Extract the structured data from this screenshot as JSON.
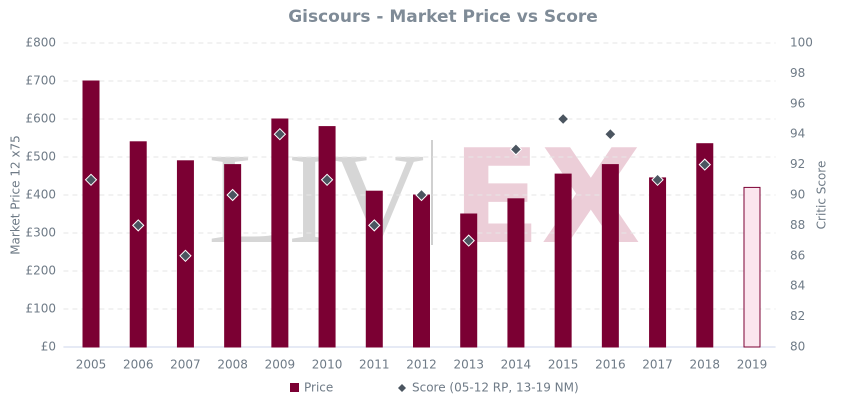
{
  "chart_data": {
    "type": "bar",
    "title": "Giscours - Market Price vs Score",
    "watermark": [
      "LIV",
      "EX"
    ],
    "categories": [
      "2005",
      "2006",
      "2007",
      "2008",
      "2009",
      "2010",
      "2011",
      "2012",
      "2013",
      "2014",
      "2015",
      "2016",
      "2017",
      "2018",
      "2019"
    ],
    "series": [
      {
        "name": "Price",
        "type": "bar",
        "color": "#7b0033",
        "colors": [
          "#7b0033",
          "#7b0033",
          "#7b0033",
          "#7b0033",
          "#7b0033",
          "#7b0033",
          "#7b0033",
          "#7b0033",
          "#7b0033",
          "#7b0033",
          "#7b0033",
          "#7b0033",
          "#7b0033",
          "#7b0033",
          "#fbe6ee"
        ],
        "values": [
          700,
          540,
          490,
          480,
          600,
          580,
          410,
          400,
          350,
          390,
          455,
          480,
          445,
          535,
          420
        ]
      },
      {
        "name": "Score (05-12 RP, 13-19 NM)",
        "type": "scatter",
        "axis": "y2",
        "color": "#4b5560",
        "values": [
          91,
          88,
          86,
          90,
          94,
          91,
          88,
          90,
          87,
          93,
          95,
          94,
          91,
          92,
          null
        ]
      }
    ],
    "ylabel": "Market Price 12 x75",
    "y2label": "Critic Score",
    "ylim": [
      0,
      800
    ],
    "yticks": [
      {
        "value": 0,
        "label": "£0"
      },
      {
        "value": 100,
        "label": "£100"
      },
      {
        "value": 200,
        "label": "£200"
      },
      {
        "value": 300,
        "label": "£300"
      },
      {
        "value": 400,
        "label": "£400"
      },
      {
        "value": 500,
        "label": "£500"
      },
      {
        "value": 600,
        "label": "£600"
      },
      {
        "value": 700,
        "label": "£700"
      },
      {
        "value": 800,
        "label": "£800"
      }
    ],
    "y2lim": [
      80,
      100
    ],
    "y2ticks": [
      80,
      82,
      84,
      86,
      88,
      90,
      92,
      94,
      96,
      98,
      100
    ],
    "grid": true,
    "legend": "bottom"
  }
}
